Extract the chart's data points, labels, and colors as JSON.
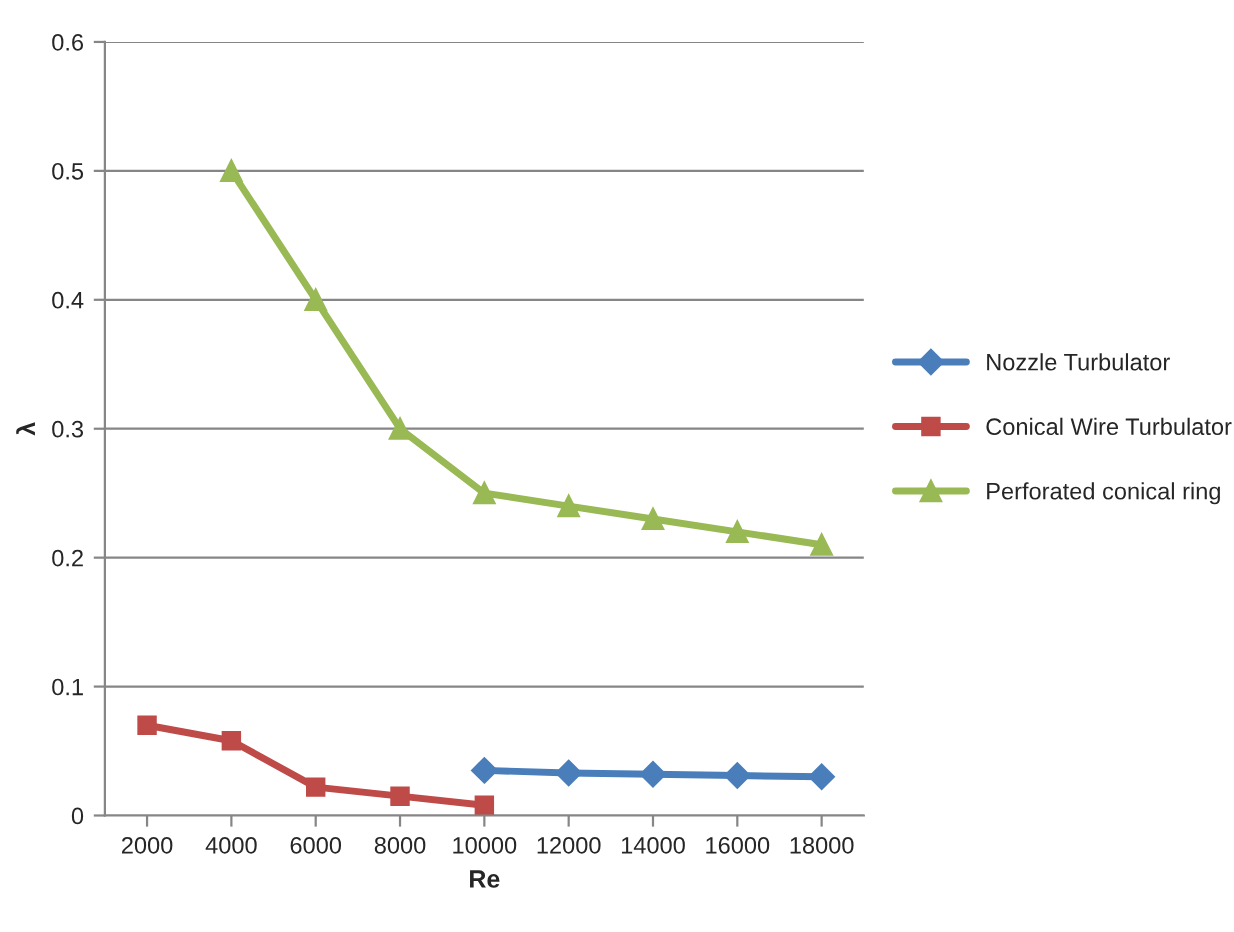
{
  "chart_data": {
    "type": "line",
    "xlabel": "Re",
    "ylabel": "λ",
    "categories": [
      "2000",
      "4000",
      "6000",
      "8000",
      "10000",
      "12000",
      "14000",
      "16000",
      "18000"
    ],
    "series": [
      {
        "name": "Nozzle Turbulator",
        "color": "#4a7ebb",
        "marker": "diamond",
        "values": [
          null,
          null,
          null,
          null,
          0.035,
          0.033,
          0.032,
          0.031,
          0.03
        ]
      },
      {
        "name": "Conical Wire Turbulator",
        "color": "#be4b48",
        "marker": "square",
        "values": [
          0.07,
          0.058,
          0.022,
          0.015,
          0.008,
          null,
          null,
          null,
          null
        ]
      },
      {
        "name": "Perforated conical ring",
        "color": "#98b954",
        "marker": "triangle",
        "values": [
          null,
          0.5,
          0.4,
          0.3,
          0.25,
          0.24,
          0.23,
          0.22,
          0.21
        ]
      }
    ],
    "ylim": [
      0,
      0.6
    ],
    "yticks": [
      0,
      0.1,
      0.2,
      0.3,
      0.4,
      0.5,
      0.6
    ],
    "grid": "y",
    "legend": "right",
    "line_style": "solid"
  }
}
